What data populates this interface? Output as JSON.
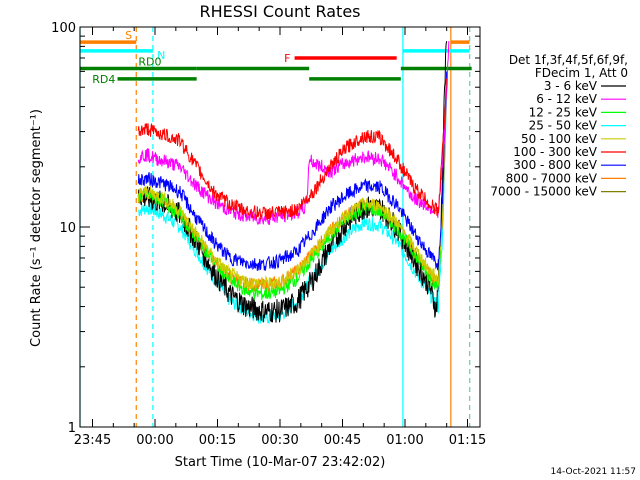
{
  "chart_data": {
    "type": "line",
    "title": "RHESSI Count Rates",
    "xlabel": "Start Time (10-Mar-07 23:42:02)",
    "ylabel": "Count Rate (s⁻¹ detector segment⁻¹)",
    "yscale": "log",
    "ylim": [
      1,
      100
    ],
    "xlim_minutes_after_start": [
      0,
      96
    ],
    "x_ticks": [
      {
        "label": "23:45",
        "minutes_after_start": 3
      },
      {
        "label": "00:00",
        "minutes_after_start": 18
      },
      {
        "label": "00:15",
        "minutes_after_start": 33
      },
      {
        "label": "00:30",
        "minutes_after_start": 48
      },
      {
        "label": "00:45",
        "minutes_after_start": 63
      },
      {
        "label": "01:00",
        "minutes_after_start": 78
      },
      {
        "label": "01:15",
        "minutes_after_start": 93
      }
    ],
    "y_ticks": [
      "1",
      "10",
      "100"
    ],
    "legend": {
      "position": "right",
      "header": [
        "Det 1f,3f,4f,5f,6f,9f,",
        "FDecim 1, Att 0"
      ],
      "entries": [
        {
          "label": "3 - 6 keV",
          "color": "#000000"
        },
        {
          "label": "6 - 12 keV",
          "color": "#ff00ff"
        },
        {
          "label": "12 - 25 keV",
          "color": "#00ff00"
        },
        {
          "label": "25 - 50 keV",
          "color": "#00ffff"
        },
        {
          "label": "50 - 100 keV",
          "color": "#cccc00"
        },
        {
          "label": "100 - 300 keV",
          "color": "#ff0000"
        },
        {
          "label": "300 - 800 keV",
          "color": "#0000ff"
        },
        {
          "label": "800 - 7000 keV",
          "color": "#ff8000"
        },
        {
          "label": "7000 - 15000 keV",
          "color": "#808000"
        }
      ]
    },
    "series": [
      {
        "name": "3 - 6 keV",
        "color": "#000000",
        "points": [
          [
            14,
            14.5
          ],
          [
            16,
            14
          ],
          [
            18,
            13.5
          ],
          [
            20,
            13.2
          ],
          [
            24,
            11.5
          ],
          [
            28,
            8.5
          ],
          [
            32,
            6
          ],
          [
            36,
            4.6
          ],
          [
            40,
            4.0
          ],
          [
            44,
            3.8
          ],
          [
            48,
            3.8
          ],
          [
            52,
            4.2
          ],
          [
            56,
            5.5
          ],
          [
            60,
            8
          ],
          [
            64,
            10.5
          ],
          [
            68,
            12.5
          ],
          [
            72,
            12.5
          ],
          [
            76,
            10
          ],
          [
            80,
            7
          ],
          [
            84,
            5
          ],
          [
            85.5,
            3.8
          ],
          [
            86.5,
            8
          ],
          [
            87.5,
            50
          ],
          [
            88,
            85
          ]
        ]
      },
      {
        "name": "6 - 12 keV",
        "color": "#ff00ff",
        "points": [
          [
            14,
            22.5
          ],
          [
            16,
            23
          ],
          [
            18,
            22
          ],
          [
            20,
            21.5
          ],
          [
            24,
            20
          ],
          [
            28,
            16
          ],
          [
            32,
            13.5
          ],
          [
            36,
            12
          ],
          [
            40,
            11.3
          ],
          [
            44,
            11
          ],
          [
            48,
            11.3
          ],
          [
            52,
            11.8
          ],
          [
            54,
            12.5
          ],
          [
            54.5,
            14
          ],
          [
            55,
            22
          ],
          [
            56,
            21
          ],
          [
            58,
            20
          ],
          [
            60,
            19
          ],
          [
            64,
            21
          ],
          [
            68,
            22.5
          ],
          [
            72,
            22
          ],
          [
            76,
            18
          ],
          [
            80,
            14
          ],
          [
            84,
            12.5
          ],
          [
            86,
            12
          ],
          [
            87,
            20
          ],
          [
            88,
            45
          ],
          [
            88.5,
            85
          ]
        ]
      },
      {
        "name": "12 - 25 keV",
        "color": "#00ff00",
        "points": [
          [
            14,
            14
          ],
          [
            16,
            14.5
          ],
          [
            18,
            14
          ],
          [
            20,
            13.5
          ],
          [
            24,
            11.5
          ],
          [
            28,
            8.8
          ],
          [
            32,
            6.8
          ],
          [
            36,
            5.4
          ],
          [
            40,
            4.8
          ],
          [
            44,
            4.6
          ],
          [
            48,
            4.8
          ],
          [
            52,
            5.5
          ],
          [
            56,
            7
          ],
          [
            60,
            9
          ],
          [
            64,
            11
          ],
          [
            68,
            12.5
          ],
          [
            72,
            12
          ],
          [
            76,
            10
          ],
          [
            80,
            7.5
          ],
          [
            84,
            5.6
          ],
          [
            86,
            5
          ],
          [
            87,
            12
          ],
          [
            88,
            55
          ]
        ]
      },
      {
        "name": "25 - 50 keV",
        "color": "#00ffff",
        "points": [
          [
            14,
            12
          ],
          [
            16,
            12.5
          ],
          [
            18,
            12
          ],
          [
            20,
            11.5
          ],
          [
            24,
            10
          ],
          [
            28,
            7.5
          ],
          [
            32,
            5.6
          ],
          [
            36,
            4.3
          ],
          [
            40,
            3.8
          ],
          [
            44,
            3.5
          ],
          [
            48,
            3.6
          ],
          [
            52,
            4.2
          ],
          [
            56,
            5.6
          ],
          [
            60,
            7.5
          ],
          [
            64,
            9.2
          ],
          [
            68,
            10.5
          ],
          [
            72,
            10.2
          ],
          [
            76,
            8.5
          ],
          [
            80,
            6.2
          ],
          [
            84,
            4.6
          ],
          [
            86,
            4
          ],
          [
            87,
            9
          ],
          [
            88,
            45
          ]
        ]
      },
      {
        "name": "50 - 100 keV",
        "color": "#cccc00",
        "points": [
          [
            14,
            14.5
          ],
          [
            16,
            15
          ],
          [
            18,
            14.5
          ],
          [
            20,
            14
          ],
          [
            24,
            12
          ],
          [
            28,
            9.2
          ],
          [
            32,
            7
          ],
          [
            36,
            5.8
          ],
          [
            40,
            5.3
          ],
          [
            44,
            5.2
          ],
          [
            48,
            5.3
          ],
          [
            52,
            6
          ],
          [
            56,
            7.5
          ],
          [
            60,
            9.5
          ],
          [
            64,
            11.5
          ],
          [
            68,
            13
          ],
          [
            72,
            12.8
          ],
          [
            76,
            10.5
          ],
          [
            80,
            8
          ],
          [
            84,
            6
          ],
          [
            86,
            5.4
          ],
          [
            87,
            12
          ],
          [
            88,
            55
          ]
        ]
      },
      {
        "name": "100 - 300 keV",
        "color": "#ff0000",
        "points": [
          [
            14,
            30
          ],
          [
            16,
            31
          ],
          [
            18,
            30
          ],
          [
            20,
            29
          ],
          [
            24,
            27
          ],
          [
            28,
            20
          ],
          [
            32,
            15
          ],
          [
            36,
            13
          ],
          [
            40,
            12
          ],
          [
            44,
            11.7
          ],
          [
            48,
            11.8
          ],
          [
            52,
            12.2
          ],
          [
            56,
            15
          ],
          [
            60,
            20
          ],
          [
            64,
            25
          ],
          [
            68,
            28.5
          ],
          [
            72,
            28
          ],
          [
            76,
            22
          ],
          [
            80,
            16
          ],
          [
            84,
            13
          ],
          [
            86,
            12
          ],
          [
            87,
            24
          ],
          [
            88,
            55
          ]
        ]
      },
      {
        "name": "300 - 800 keV",
        "color": "#0000ff",
        "points": [
          [
            14,
            17
          ],
          [
            16,
            17.5
          ],
          [
            18,
            17
          ],
          [
            20,
            16.5
          ],
          [
            24,
            15
          ],
          [
            28,
            11
          ],
          [
            32,
            8.5
          ],
          [
            36,
            7
          ],
          [
            40,
            6.6
          ],
          [
            44,
            6.5
          ],
          [
            48,
            6.8
          ],
          [
            52,
            7.5
          ],
          [
            56,
            9.5
          ],
          [
            60,
            12.5
          ],
          [
            64,
            14.5
          ],
          [
            68,
            16
          ],
          [
            72,
            15.8
          ],
          [
            76,
            13
          ],
          [
            80,
            9.5
          ],
          [
            84,
            7.2
          ],
          [
            86,
            6.5
          ],
          [
            87,
            14
          ],
          [
            88,
            60
          ]
        ]
      },
      {
        "name": "800 - 7000 keV",
        "color": "#ff8000",
        "points": [
          [
            14,
            14
          ],
          [
            16,
            14.5
          ],
          [
            18,
            14
          ],
          [
            20,
            13.5
          ],
          [
            24,
            11.5
          ],
          [
            28,
            8.8
          ],
          [
            32,
            6.8
          ],
          [
            36,
            5.6
          ],
          [
            40,
            5.2
          ],
          [
            44,
            5.1
          ],
          [
            48,
            5.3
          ],
          [
            52,
            6
          ],
          [
            56,
            7.5
          ],
          [
            60,
            9.5
          ],
          [
            64,
            11.5
          ],
          [
            68,
            13
          ],
          [
            72,
            12.5
          ],
          [
            76,
            10.2
          ],
          [
            80,
            7.6
          ],
          [
            84,
            5.8
          ],
          [
            86,
            5.2
          ],
          [
            87,
            11
          ],
          [
            88,
            50
          ]
        ]
      },
      {
        "name": "7000 - 15000 keV",
        "color": "#808000",
        "points": []
      }
    ],
    "annotations": [
      {
        "text": "S",
        "color": "#ff8000",
        "x_start": 0,
        "x_end": 13.5,
        "y": 84
      },
      {
        "text": "S",
        "color": "#ff8000",
        "x_start": 89,
        "x_end": 93.5,
        "y": 84
      },
      {
        "text": "N",
        "color": "#00ffff",
        "x_start": 0,
        "x_end": 17.5,
        "y": 76
      },
      {
        "text": "N",
        "color": "#00ffff",
        "x_start": 77.5,
        "x_end": 93.5,
        "y": 76
      },
      {
        "text": "F",
        "color": "#ff0000",
        "x_start": 51.5,
        "x_end": 76,
        "y": 70
      },
      {
        "text": "RD0",
        "color": "#008000",
        "x_start": 0,
        "x_end": 28,
        "y": 62
      },
      {
        "text": "RD4",
        "color": "#008000",
        "x_start": 9,
        "x_end": 28,
        "y": 55
      },
      {
        "text": "RD0",
        "color": "#008000",
        "x_start": 28,
        "x_end": 55,
        "y": 62
      },
      {
        "text": "RD4",
        "color": "#008000",
        "x_start": 55,
        "x_end": 77,
        "y": 55
      },
      {
        "text": "RD0",
        "color": "#008000",
        "x_start": 77,
        "x_end": 94,
        "y": 62
      }
    ],
    "vertical_markers": [
      {
        "minutes_after_start": 0,
        "color": "#00ffff",
        "style": "solid"
      },
      {
        "minutes_after_start": 13.5,
        "color": "#ff8000",
        "style": "dashed"
      },
      {
        "minutes_after_start": 17.5,
        "color": "#00ffff",
        "style": "dashed"
      },
      {
        "minutes_after_start": 77.5,
        "color": "#00ffff",
        "style": "solid"
      },
      {
        "minutes_after_start": 89,
        "color": "#ff8000",
        "style": "solid"
      },
      {
        "minutes_after_start": 93.5,
        "color": "#ff8000",
        "style": "dashed"
      },
      {
        "minutes_after_start": 93.5,
        "color": "#00ffff",
        "style": "dashed"
      }
    ],
    "grid": false
  },
  "footer": {
    "date": "14-Oct-2021 11:57"
  }
}
